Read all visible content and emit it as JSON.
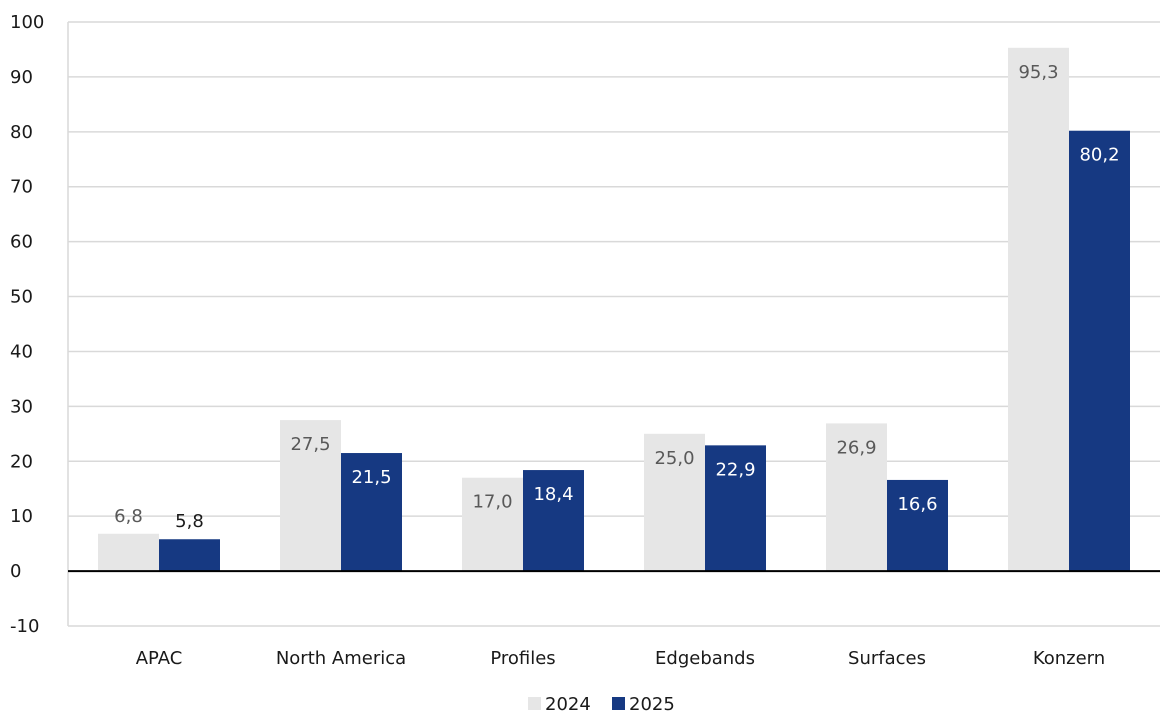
{
  "chart_data": {
    "type": "bar",
    "categories": [
      "APAC",
      "North America",
      "Profiles",
      "Edgebands",
      "Surfaces",
      "Konzern"
    ],
    "series": [
      {
        "name": "2024",
        "values": [
          6.8,
          27.5,
          17.0,
          25.0,
          26.9,
          95.3
        ],
        "color": "#e6e6e6",
        "labels": [
          "6,8",
          "27,5",
          "17,0",
          "25,0",
          "26,9",
          "95,3"
        ]
      },
      {
        "name": "2025",
        "values": [
          5.8,
          21.5,
          18.4,
          22.9,
          16.6,
          80.2
        ],
        "color": "#163982",
        "labels": [
          "5,8",
          "21,5",
          "18,4",
          "22,9",
          "16,6",
          "80,2"
        ]
      }
    ],
    "ylim": [
      -10,
      100
    ],
    "yticks": [
      "-10",
      "0",
      "10",
      "20",
      "30",
      "40",
      "50",
      "60",
      "70",
      "80",
      "90",
      "100"
    ],
    "grid": true,
    "legend": "bottom-center",
    "title": "",
    "xlabel": "",
    "ylabel": ""
  }
}
